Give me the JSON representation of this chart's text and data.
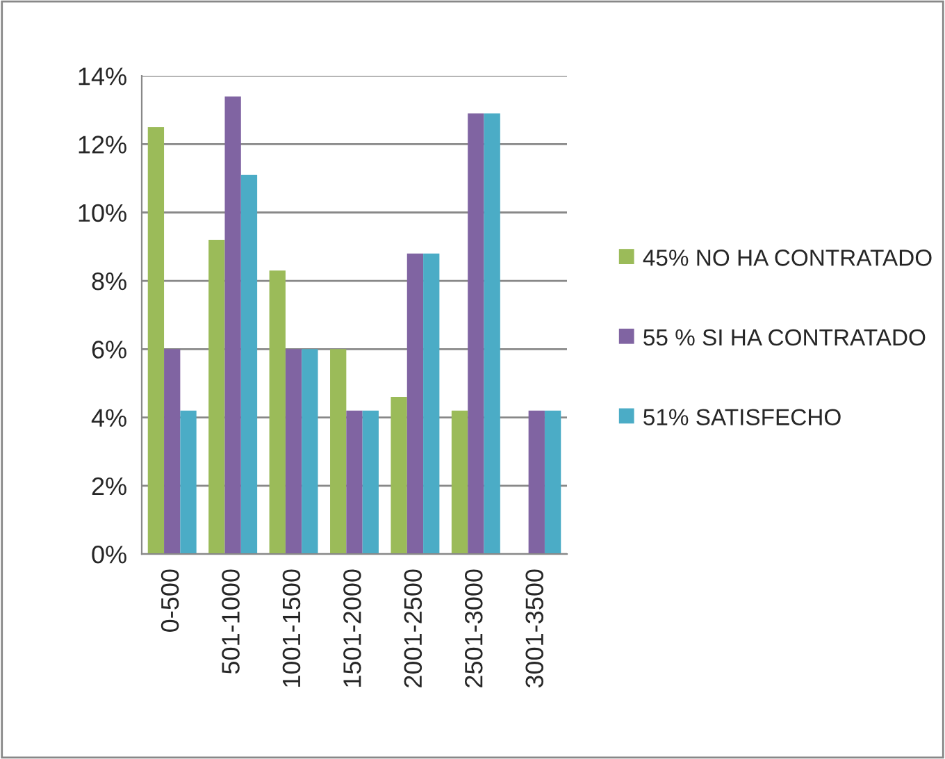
{
  "chart_data": {
    "type": "bar",
    "categories": [
      "0-500",
      "501-1000",
      "1001-1500",
      "1501-2000",
      "2001-2500",
      "2501-3000",
      "3001-3500"
    ],
    "series": [
      {
        "name": "45% NO HA CONTRATADO",
        "color": "#9bbb59",
        "values": [
          12.5,
          9.2,
          8.3,
          6.0,
          4.6,
          4.2,
          0
        ]
      },
      {
        "name": "55 % SI HA CONTRATADO",
        "color": "#8064a2",
        "values": [
          6.0,
          13.4,
          6.0,
          4.2,
          8.8,
          12.9,
          4.2
        ]
      },
      {
        "name": "51% SATISFECHO",
        "color": "#4bacc6",
        "values": [
          4.2,
          11.1,
          6.0,
          4.2,
          8.8,
          12.9,
          4.2
        ]
      }
    ],
    "ylim": [
      0,
      14
    ],
    "yticks": [
      {
        "value": 0,
        "label": "0%"
      },
      {
        "value": 2,
        "label": "2%"
      },
      {
        "value": 4,
        "label": "4%"
      },
      {
        "value": 6,
        "label": "6%"
      },
      {
        "value": 8,
        "label": "8%"
      },
      {
        "value": 10,
        "label": "10%"
      },
      {
        "value": 12,
        "label": "12%"
      },
      {
        "value": 14,
        "label": "14%"
      }
    ],
    "grid": "y",
    "legend": "right"
  }
}
